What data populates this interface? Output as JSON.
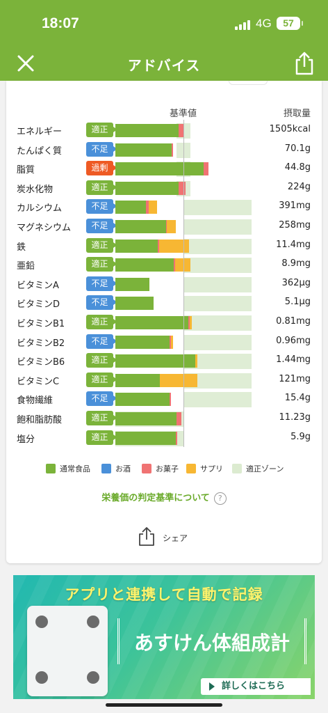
{
  "status": {
    "time": "18:07",
    "network": "4G",
    "battery": "57"
  },
  "nav": {
    "title": "アドバイス"
  },
  "table": {
    "header_base": "基準値",
    "header_intake": "摂取量",
    "rows": [
      {
        "name": "エネルギー",
        "status": "適正",
        "kind": "ok",
        "value": "1505kcal",
        "normal": 0.93,
        "alcohol": 0,
        "snack": 0.07,
        "supp": 0,
        "zone": [
          0.9,
          1.1
        ]
      },
      {
        "name": "たんぱく質",
        "status": "不足",
        "kind": "low",
        "value": "70.1g",
        "normal": 0.83,
        "alcohol": 0,
        "snack": 0.02,
        "supp": 0,
        "zone": [
          0.9,
          1.1
        ]
      },
      {
        "name": "脂質",
        "status": "過剰",
        "kind": "high",
        "value": "44.8g",
        "normal": 1.3,
        "alcohol": 0,
        "snack": 0.07,
        "supp": 0,
        "zone": [
          0.9,
          1.1
        ]
      },
      {
        "name": "炭水化物",
        "status": "適正",
        "kind": "ok",
        "value": "224g",
        "normal": 0.93,
        "alcohol": 0,
        "snack": 0.1,
        "supp": 0,
        "zone": [
          0.9,
          1.1
        ]
      },
      {
        "name": "カルシウム",
        "status": "不足",
        "kind": "low",
        "value": "391mg",
        "normal": 0.45,
        "alcohol": 0,
        "snack": 0.04,
        "supp": 0.12,
        "zone": [
          1.0,
          2.0
        ]
      },
      {
        "name": "マグネシウム",
        "status": "不足",
        "kind": "low",
        "value": "258mg",
        "normal": 0.74,
        "alcohol": 0,
        "snack": 0.02,
        "supp": 0.13,
        "zone": [
          1.0,
          2.0
        ]
      },
      {
        "name": "鉄",
        "status": "適正",
        "kind": "ok",
        "value": "11.4mg",
        "normal": 0.62,
        "alcohol": 0,
        "snack": 0.02,
        "supp": 0.44,
        "zone": [
          1.0,
          2.0
        ]
      },
      {
        "name": "亜鉛",
        "status": "適正",
        "kind": "ok",
        "value": "8.9mg",
        "normal": 0.86,
        "alcohol": 0,
        "snack": 0.02,
        "supp": 0.22,
        "zone": [
          1.0,
          2.0
        ]
      },
      {
        "name": "ビタミンA",
        "status": "不足",
        "kind": "low",
        "value": "362μg",
        "normal": 0.5,
        "alcohol": 0,
        "snack": 0,
        "supp": 0,
        "zone": [
          1.0,
          2.0
        ]
      },
      {
        "name": "ビタミンD",
        "status": "不足",
        "kind": "low",
        "value": "5.1μg",
        "normal": 0.56,
        "alcohol": 0,
        "snack": 0,
        "supp": 0,
        "zone": [
          1.0,
          2.0
        ]
      },
      {
        "name": "ビタミンB1",
        "status": "適正",
        "kind": "ok",
        "value": "0.81mg",
        "normal": 1.07,
        "alcohol": 0,
        "snack": 0.02,
        "supp": 0.03,
        "zone": [
          1.0,
          2.0
        ]
      },
      {
        "name": "ビタミンB2",
        "status": "不足",
        "kind": "low",
        "value": "0.96mg",
        "normal": 0.8,
        "alcohol": 0,
        "snack": 0.02,
        "supp": 0.03,
        "zone": [
          1.0,
          2.0
        ]
      },
      {
        "name": "ビタミンB6",
        "status": "適正",
        "kind": "ok",
        "value": "1.44mg",
        "normal": 1.17,
        "alcohol": 0,
        "snack": 0,
        "supp": 0.03,
        "zone": [
          1.0,
          2.0
        ]
      },
      {
        "name": "ビタミンC",
        "status": "適正",
        "kind": "ok",
        "value": "121mg",
        "normal": 0.65,
        "alcohol": 0,
        "snack": 0,
        "supp": 0.55,
        "zone": [
          1.0,
          2.0
        ]
      },
      {
        "name": "食物繊維",
        "status": "不足",
        "kind": "low",
        "value": "15.4g",
        "normal": 0.8,
        "alcohol": 0,
        "snack": 0.02,
        "supp": 0,
        "zone": [
          1.0,
          2.0
        ]
      },
      {
        "name": "飽和脂肪酸",
        "status": "適正",
        "kind": "ok",
        "value": "11.23g",
        "normal": 0.9,
        "alcohol": 0,
        "snack": 0.07,
        "supp": 0,
        "zone": [
          0.0,
          1.0
        ]
      },
      {
        "name": "塩分",
        "status": "適正",
        "kind": "ok",
        "value": "5.9g",
        "normal": 0.89,
        "alcohol": 0,
        "snack": 0.02,
        "supp": 0,
        "zone": [
          0.0,
          1.0
        ]
      }
    ]
  },
  "legend": [
    {
      "label": "通常食品",
      "color": "#7bb33a"
    },
    {
      "label": "お酒",
      "color": "#4a90d9"
    },
    {
      "label": "お菓子",
      "color": "#f07373"
    },
    {
      "label": "サプリ",
      "color": "#f7b733"
    },
    {
      "label": "適正ゾーン",
      "color": "#dcebd0"
    }
  ],
  "criteria_link": "栄養価の判定基準について",
  "criteria_help": "?",
  "share_label": "シェア",
  "banner": {
    "headline": "アプリと連携して自動で記録",
    "product": "あすけん体組成計",
    "more": "詳しくはこちら"
  }
}
